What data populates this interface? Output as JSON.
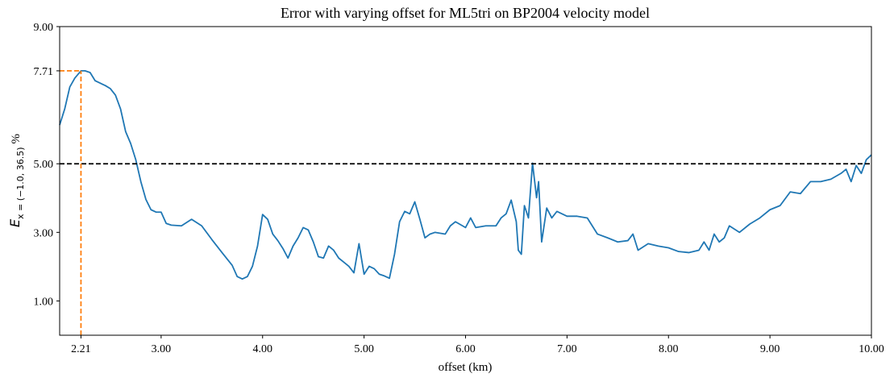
{
  "chart_data": {
    "type": "line",
    "title": "Error with varying offset for ML5tri on BP2004 velocity model",
    "xlabel": "offset (km)",
    "ylabel_symbol": "E",
    "ylabel_subscript": "x = (−1.0, 36.5)",
    "ylabel_unit": "%",
    "xlim": [
      2.0,
      10.0
    ],
    "ylim": [
      0,
      9
    ],
    "xticks": [
      {
        "value": 2.21,
        "label": "2.21"
      },
      {
        "value": 3,
        "label": "3.00"
      },
      {
        "value": 4,
        "label": "4.00"
      },
      {
        "value": 5,
        "label": "5.00"
      },
      {
        "value": 6,
        "label": "6.00"
      },
      {
        "value": 7,
        "label": "7.00"
      },
      {
        "value": 8,
        "label": "8.00"
      },
      {
        "value": 9,
        "label": "9.00"
      },
      {
        "value": 10,
        "label": "10.00"
      }
    ],
    "yticks": [
      {
        "value": 1,
        "label": "1.00"
      },
      {
        "value": 3,
        "label": "3.00"
      },
      {
        "value": 5,
        "label": "5.00"
      },
      {
        "value": 7.71,
        "label": "7.71"
      },
      {
        "value": 9,
        "label": "9.00"
      }
    ],
    "threshold": 5,
    "threshold_color": "#000000",
    "peak": {
      "x": 2.21,
      "y": 7.71
    },
    "peak_color": "#ff7f0e",
    "x": [
      2.0,
      2.05,
      2.1,
      2.15,
      2.21,
      2.25,
      2.3,
      2.35,
      2.4,
      2.45,
      2.5,
      2.55,
      2.6,
      2.65,
      2.7,
      2.75,
      2.8,
      2.85,
      2.9,
      2.95,
      3.0,
      3.05,
      3.1,
      3.2,
      3.3,
      3.4,
      3.5,
      3.6,
      3.7,
      3.75,
      3.8,
      3.85,
      3.9,
      3.95,
      4.0,
      4.05,
      4.1,
      4.15,
      4.2,
      4.25,
      4.3,
      4.35,
      4.4,
      4.45,
      4.5,
      4.55,
      4.6,
      4.65,
      4.7,
      4.75,
      4.8,
      4.85,
      4.9,
      4.95,
      5.0,
      5.05,
      5.1,
      5.15,
      5.2,
      5.25,
      5.3,
      5.35,
      5.4,
      5.45,
      5.5,
      5.55,
      5.6,
      5.65,
      5.7,
      5.8,
      5.85,
      5.9,
      6.0,
      6.05,
      6.1,
      6.2,
      6.3,
      6.35,
      6.4,
      6.45,
      6.5,
      6.52,
      6.55,
      6.58,
      6.62,
      6.66,
      6.7,
      6.72,
      6.75,
      6.8,
      6.85,
      6.9,
      7.0,
      7.1,
      7.2,
      7.3,
      7.4,
      7.5,
      7.6,
      7.65,
      7.7,
      7.8,
      7.9,
      8.0,
      8.1,
      8.2,
      8.3,
      8.35,
      8.4,
      8.45,
      8.5,
      8.55,
      8.6,
      8.7,
      8.8,
      8.9,
      9.0,
      9.1,
      9.2,
      9.3,
      9.4,
      9.5,
      9.6,
      9.7,
      9.75,
      9.8,
      9.85,
      9.9,
      9.95,
      10.0
    ],
    "series": [
      {
        "color": "#1f77b4",
        "values": [
          6.13,
          6.6,
          7.24,
          7.5,
          7.71,
          7.71,
          7.66,
          7.42,
          7.35,
          7.28,
          7.19,
          7.0,
          6.6,
          5.94,
          5.59,
          5.12,
          4.48,
          3.96,
          3.66,
          3.59,
          3.59,
          3.26,
          3.21,
          3.19,
          3.38,
          3.19,
          2.79,
          2.41,
          2.04,
          1.71,
          1.64,
          1.71,
          2.01,
          2.6,
          3.52,
          3.38,
          2.95,
          2.76,
          2.53,
          2.25,
          2.6,
          2.84,
          3.14,
          3.07,
          2.72,
          2.29,
          2.25,
          2.6,
          2.48,
          2.25,
          2.13,
          2.01,
          1.82,
          2.67,
          1.78,
          2.01,
          1.94,
          1.78,
          1.73,
          1.66,
          2.36,
          3.31,
          3.61,
          3.54,
          3.89,
          3.38,
          2.84,
          2.95,
          3.0,
          2.95,
          3.19,
          3.31,
          3.14,
          3.42,
          3.14,
          3.19,
          3.19,
          3.42,
          3.54,
          3.94,
          3.31,
          2.48,
          2.36,
          3.78,
          3.42,
          5.02,
          4.01,
          4.48,
          2.72,
          3.71,
          3.42,
          3.61,
          3.47,
          3.47,
          3.42,
          2.95,
          2.84,
          2.72,
          2.76,
          2.95,
          2.48,
          2.67,
          2.6,
          2.55,
          2.44,
          2.41,
          2.48,
          2.72,
          2.48,
          2.95,
          2.72,
          2.84,
          3.19,
          3.0,
          3.24,
          3.42,
          3.66,
          3.78,
          4.18,
          4.13,
          4.48,
          4.48,
          4.55,
          4.72,
          4.84,
          4.48,
          4.95,
          4.72,
          5.12,
          5.26
        ]
      }
    ]
  }
}
